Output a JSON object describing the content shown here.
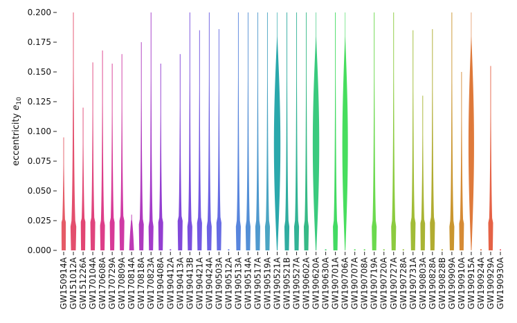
{
  "chart_data": {
    "type": "violin",
    "ylabel": "eccentricity",
    "ylabel_symbol": "e",
    "ylabel_subscript": "10",
    "ylim": [
      0,
      0.2
    ],
    "yticks": [
      "0.000",
      "0.025",
      "0.050",
      "0.075",
      "0.100",
      "0.125",
      "0.150",
      "0.175",
      "0.200"
    ],
    "categories": [
      "GW150914A",
      "GW151012A",
      "GW151226A",
      "GW170104A",
      "GW170608A",
      "GW170729A",
      "GW170809A",
      "GW170814A",
      "GW170818A",
      "GW170823A",
      "GW190408A",
      "GW190412A",
      "GW190413A",
      "GW190413B",
      "GW190421A",
      "GW190424A",
      "GW190503A",
      "GW190512A",
      "GW190513A",
      "GW190514A",
      "GW190517A",
      "GW190519A",
      "GW190521A",
      "GW190521B",
      "GW190527A",
      "GW190602A",
      "GW190620A",
      "GW190630A",
      "GW190701A",
      "GW190706A",
      "GW190707A",
      "GW190708A",
      "GW190719A",
      "GW190720A",
      "GW190727A",
      "GW190728A",
      "GW190731A",
      "GW190803A",
      "GW190828A",
      "GW190828B",
      "GW190909A",
      "GW190910A",
      "GW190915A",
      "GW190924A",
      "GW190929A",
      "GW190930A"
    ],
    "colors": [
      "#e4525f",
      "#e24665",
      "#e03c6c",
      "#de3a76",
      "#db3483",
      "#d62f91",
      "#cc2fa0",
      "#b92fb2",
      "#ab2fbc",
      "#9f31c7",
      "#8d34cf",
      "#8538d2",
      "#7a3fd8",
      "#7346dc",
      "#6b4fe0",
      "#6559e1",
      "#5e63e1",
      "#5671df",
      "#4f7edb",
      "#4a89d4",
      "#4694cb",
      "#41a0c0",
      "#1fa3a8",
      "#24a89b",
      "#27af8f",
      "#2bb580",
      "#2fc777",
      "#33d066",
      "#38d85a",
      "#3ddc55",
      "#45dc50",
      "#52da4c",
      "#63d745",
      "#78cf3d",
      "#86c835",
      "#92c030",
      "#9cb82c",
      "#a4b029",
      "#ada826",
      "#b49f24",
      "#c79024",
      "#d4852a",
      "#dd7330",
      "#e06534",
      "#e45a3c",
      "#e8505d"
    ],
    "widths": [
      0.6,
      0.7,
      0.6,
      0.6,
      0.6,
      0.6,
      0.6,
      0.7,
      0.6,
      0.6,
      0.6,
      0.15,
      0.6,
      0.6,
      0.6,
      0.6,
      0.6,
      0.1,
      0.6,
      0.6,
      0.6,
      0.6,
      0.7,
      0.6,
      0.6,
      0.6,
      0.7,
      0.15,
      0.6,
      0.6,
      0.1,
      0.1,
      0.6,
      0.15,
      0.6,
      0.15,
      0.6,
      0.6,
      0.6,
      0.15,
      0.6,
      0.6,
      0.6,
      0.1,
      0.6,
      0.1
    ],
    "maxima": [
      0.095,
      0.2,
      0.12,
      0.158,
      0.168,
      0.157,
      0.165,
      0.03,
      0.175,
      0.2,
      0.157,
      0.002,
      0.165,
      0.2,
      0.185,
      0.2,
      0.186,
      0.002,
      0.2,
      0.2,
      0.2,
      0.2,
      0.2,
      0.2,
      0.2,
      0.2,
      0.2,
      0.002,
      0.2,
      0.2,
      0.002,
      0.002,
      0.2,
      0.002,
      0.2,
      0.002,
      0.185,
      0.13,
      0.186,
      0.002,
      0.2,
      0.15,
      0.2,
      0.002,
      0.155,
      0.002
    ],
    "bulge": [
      0.022,
      0.02,
      0.02,
      0.02,
      0.02,
      0.02,
      0.02,
      0.02,
      0.02,
      0.02,
      0.02,
      0.0,
      0.02,
      0.02,
      0.02,
      0.02,
      0.02,
      0.0,
      0.02,
      0.02,
      0.02,
      0.02,
      0.09,
      0.02,
      0.02,
      0.02,
      0.12,
      0.0,
      0.02,
      0.04,
      0.0,
      0.0,
      0.02,
      0.0,
      0.02,
      0.0,
      0.02,
      0.02,
      0.02,
      0.0,
      0.02,
      0.02,
      0.04,
      0.0,
      0.02,
      0.0
    ]
  }
}
